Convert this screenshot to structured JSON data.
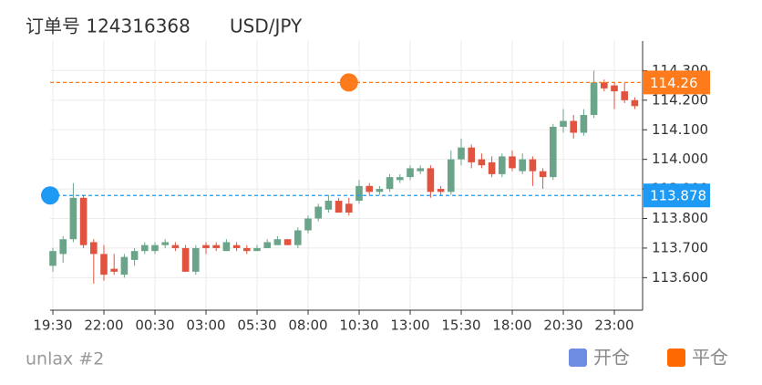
{
  "chart_data": {
    "type": "candlestick",
    "title": "订单号 124316368",
    "subtitle": "USD/JPY",
    "footer": "unlax #2",
    "categories": [
      "19:30",
      null,
      null,
      null,
      null,
      "22:00",
      null,
      null,
      null,
      null,
      "00:30",
      null,
      null,
      null,
      null,
      "03:00",
      null,
      null,
      null,
      null,
      "05:30",
      null,
      null,
      null,
      null,
      "08:00",
      null,
      null,
      null,
      null,
      "10:30",
      null,
      null,
      null,
      null,
      "13:00",
      null,
      null,
      null,
      null,
      "15:30",
      null,
      null,
      null,
      null,
      "18:00",
      null,
      null,
      null,
      null,
      "20:30",
      null,
      null,
      null,
      null,
      "23:00",
      null,
      null
    ],
    "open": [
      113.64,
      113.68,
      113.73,
      113.87,
      113.72,
      113.68,
      113.63,
      113.61,
      113.66,
      113.69,
      113.69,
      113.71,
      113.71,
      113.7,
      113.62,
      113.71,
      113.71,
      113.69,
      113.71,
      113.7,
      113.69,
      113.7,
      113.71,
      113.73,
      113.71,
      113.76,
      113.8,
      113.83,
      113.86,
      113.85,
      113.86,
      113.91,
      113.89,
      113.9,
      113.93,
      113.94,
      113.96,
      113.97,
      113.9,
      113.89,
      114.0,
      114.04,
      114.0,
      113.99,
      113.95,
      114.01,
      113.96,
      114.0,
      113.96,
      113.94,
      114.11,
      114.13,
      114.09,
      114.15,
      114.26,
      114.25,
      114.23,
      114.2
    ],
    "high": [
      113.7,
      113.74,
      113.92,
      113.88,
      113.73,
      113.71,
      113.68,
      113.68,
      113.7,
      113.72,
      113.72,
      113.73,
      113.72,
      113.71,
      113.71,
      113.72,
      113.72,
      113.73,
      113.72,
      113.71,
      113.71,
      113.73,
      113.74,
      113.73,
      113.77,
      113.81,
      113.85,
      113.88,
      113.87,
      113.87,
      113.93,
      113.92,
      113.91,
      113.95,
      113.95,
      113.98,
      113.98,
      113.98,
      113.91,
      114.03,
      114.07,
      114.05,
      114.02,
      114.01,
      114.02,
      114.03,
      114.02,
      114.01,
      113.97,
      114.12,
      114.17,
      114.15,
      114.17,
      114.3,
      114.27,
      114.26,
      114.26,
      114.21
    ],
    "low": [
      113.62,
      113.65,
      113.72,
      113.7,
      113.58,
      113.59,
      113.61,
      113.6,
      113.64,
      113.68,
      113.68,
      113.7,
      113.69,
      113.62,
      113.61,
      113.68,
      113.69,
      113.69,
      113.69,
      113.68,
      113.69,
      113.7,
      113.71,
      113.71,
      113.7,
      113.75,
      113.79,
      113.82,
      113.82,
      113.81,
      113.85,
      113.88,
      113.88,
      113.89,
      113.92,
      113.93,
      113.95,
      113.87,
      113.88,
      113.88,
      113.98,
      113.97,
      113.97,
      113.94,
      113.94,
      113.96,
      113.95,
      113.91,
      113.9,
      113.93,
      114.09,
      114.07,
      114.08,
      114.14,
      114.23,
      114.17,
      114.19,
      114.17
    ],
    "close": [
      113.69,
      113.73,
      113.87,
      113.71,
      113.68,
      113.61,
      113.62,
      113.67,
      113.69,
      113.71,
      113.71,
      113.72,
      113.7,
      113.62,
      113.7,
      113.7,
      113.7,
      113.72,
      113.7,
      113.69,
      113.7,
      113.72,
      113.73,
      113.71,
      113.76,
      113.8,
      113.84,
      113.86,
      113.82,
      113.82,
      113.91,
      113.89,
      113.9,
      113.94,
      113.94,
      113.97,
      113.97,
      113.89,
      113.89,
      114.0,
      114.04,
      113.99,
      113.98,
      113.95,
      114.01,
      113.97,
      114.0,
      113.96,
      113.94,
      114.11,
      114.13,
      114.09,
      114.15,
      114.26,
      114.24,
      114.23,
      114.2,
      114.18
    ],
    "up_color": "#6aa58a",
    "down_color": "#e0533f",
    "ylim": [
      113.49,
      114.4
    ],
    "yticks": [
      {
        "value": 113.6,
        "label": "113.600"
      },
      {
        "value": 113.7,
        "label": "113.700"
      },
      {
        "value": 113.8,
        "label": "113.800"
      },
      {
        "value": 113.9,
        "label": "113.900"
      },
      {
        "value": 114.0,
        "label": "114.000"
      },
      {
        "value": 114.1,
        "label": "114.100"
      },
      {
        "value": 114.2,
        "label": "114.200"
      },
      {
        "value": 114.3,
        "label": "114.300"
      }
    ],
    "grid": true,
    "trades": [
      {
        "name": "开仓",
        "color": "#6d8de3",
        "line_color": "#1e9af5",
        "price": 113.878,
        "index": 0
      },
      {
        "name": "平仓",
        "color": "#ff6a00",
        "line_color": "#ff7a1a",
        "price": 114.26,
        "index": 29
      }
    ]
  }
}
